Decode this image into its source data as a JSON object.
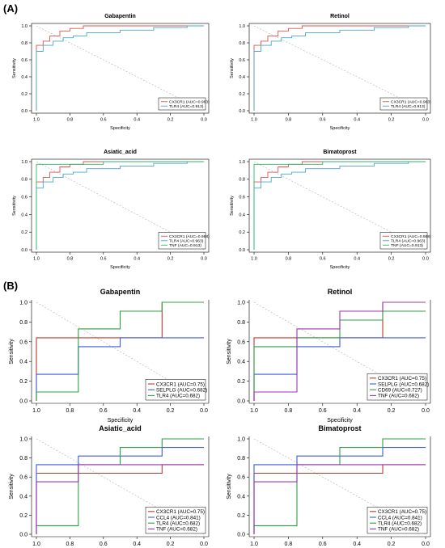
{
  "figure": {
    "panel_a_label": "(A)",
    "panel_b_label": "(B)"
  },
  "chart_data": [
    {
      "type": "line",
      "panel": "A",
      "title": "Gabapentin",
      "xlabel": "Specificity",
      "ylabel": "Sensitivity",
      "xlim": [
        1.0,
        0.0
      ],
      "ylim": [
        0.0,
        1.0
      ],
      "xticks": [
        "1.0",
        "0.8",
        "0.6",
        "0.4",
        "0.2",
        "0.0"
      ],
      "yticks": [
        "0.0",
        "0.2",
        "0.4",
        "0.6",
        "0.8",
        "1.0"
      ],
      "legend_position": "bottom-right",
      "series": [
        {
          "name": "CX3CR1 (AUC=0.963)",
          "color": "#d9534f",
          "x": [
            1.0,
            1.0,
            0.96,
            0.96,
            0.92,
            0.92,
            0.86,
            0.86,
            0.8,
            0.8,
            0.72,
            0.72,
            0.0
          ],
          "y": [
            0.0,
            0.77,
            0.77,
            0.82,
            0.82,
            0.88,
            0.88,
            0.94,
            0.94,
            0.97,
            0.97,
            1.0,
            1.0
          ]
        },
        {
          "name": "TLR4 (AUC=0.913)",
          "color": "#4aa6c9",
          "x": [
            1.0,
            1.0,
            0.96,
            0.96,
            0.9,
            0.9,
            0.84,
            0.84,
            0.78,
            0.78,
            0.7,
            0.7,
            0.5,
            0.5,
            0.3,
            0.3,
            0.1,
            0.1,
            0.0
          ],
          "y": [
            0.0,
            0.7,
            0.7,
            0.77,
            0.77,
            0.82,
            0.82,
            0.86,
            0.86,
            0.88,
            0.88,
            0.92,
            0.92,
            0.95,
            0.95,
            0.98,
            0.98,
            1.0,
            1.0
          ]
        }
      ]
    },
    {
      "type": "line",
      "panel": "A",
      "title": "Retinol",
      "xlabel": "Specificity",
      "ylabel": "Sensitivity",
      "xlim": [
        1.0,
        0.0
      ],
      "ylim": [
        0.0,
        1.0
      ],
      "xticks": [
        "1.0",
        "0.8",
        "0.6",
        "0.4",
        "0.2",
        "0.0"
      ],
      "yticks": [
        "0.0",
        "0.2",
        "0.4",
        "0.6",
        "0.8",
        "1.0"
      ],
      "legend_position": "bottom-right",
      "series": [
        {
          "name": "CX3CR1 (AUC=0.963)",
          "color": "#d9534f",
          "x": [
            1.0,
            1.0,
            0.96,
            0.96,
            0.92,
            0.92,
            0.86,
            0.86,
            0.8,
            0.8,
            0.72,
            0.72,
            0.0
          ],
          "y": [
            0.0,
            0.77,
            0.77,
            0.82,
            0.82,
            0.88,
            0.88,
            0.94,
            0.94,
            0.97,
            0.97,
            1.0,
            1.0
          ]
        },
        {
          "name": "TLR4 (AUC=0.913)",
          "color": "#4aa6c9",
          "x": [
            1.0,
            1.0,
            0.96,
            0.96,
            0.9,
            0.9,
            0.84,
            0.84,
            0.78,
            0.78,
            0.7,
            0.7,
            0.5,
            0.5,
            0.3,
            0.3,
            0.1,
            0.1,
            0.0
          ],
          "y": [
            0.0,
            0.7,
            0.7,
            0.77,
            0.77,
            0.82,
            0.82,
            0.86,
            0.86,
            0.88,
            0.88,
            0.92,
            0.92,
            0.95,
            0.95,
            0.98,
            0.98,
            1.0,
            1.0
          ]
        }
      ]
    },
    {
      "type": "line",
      "panel": "A",
      "title": "Asiatic_acid",
      "xlabel": "Specificity",
      "ylabel": "Sensitivity",
      "xlim": [
        1.0,
        0.0
      ],
      "ylim": [
        0.0,
        1.0
      ],
      "xticks": [
        "1.0",
        "0.8",
        "0.6",
        "0.4",
        "0.2",
        "0.0"
      ],
      "yticks": [
        "0.0",
        "0.2",
        "0.4",
        "0.6",
        "0.8",
        "1.0"
      ],
      "legend_position": "bottom-right",
      "series": [
        {
          "name": "CX3CR1 (AUC=0.988)",
          "color": "#d9534f",
          "x": [
            1.0,
            1.0,
            0.96,
            0.96,
            0.92,
            0.92,
            0.86,
            0.86,
            0.8,
            0.8,
            0.72,
            0.72,
            0.0
          ],
          "y": [
            0.0,
            0.77,
            0.77,
            0.82,
            0.82,
            0.88,
            0.88,
            0.94,
            0.94,
            0.97,
            0.97,
            1.0,
            1.0
          ]
        },
        {
          "name": "TLR4 (AUC=0.963)",
          "color": "#4aa6c9",
          "x": [
            1.0,
            1.0,
            0.96,
            0.96,
            0.9,
            0.9,
            0.84,
            0.84,
            0.78,
            0.78,
            0.7,
            0.7,
            0.5,
            0.5,
            0.3,
            0.3,
            0.1,
            0.1,
            0.0
          ],
          "y": [
            0.0,
            0.7,
            0.7,
            0.77,
            0.77,
            0.82,
            0.82,
            0.86,
            0.86,
            0.88,
            0.88,
            0.92,
            0.92,
            0.95,
            0.95,
            0.98,
            0.98,
            1.0,
            1.0
          ]
        },
        {
          "name": "TNF (AUC=0.913)",
          "color": "#2fb56a",
          "x": [
            1.0,
            1.0,
            0.6,
            0.6,
            0.0
          ],
          "y": [
            0.0,
            0.97,
            0.97,
            1.0,
            1.0
          ]
        }
      ]
    },
    {
      "type": "line",
      "panel": "A",
      "title": "Bimatoprost",
      "xlabel": "Specificity",
      "ylabel": "Sensitivity",
      "xlim": [
        1.0,
        0.0
      ],
      "ylim": [
        0.0,
        1.0
      ],
      "xticks": [
        "1.0",
        "0.8",
        "0.6",
        "0.4",
        "0.2",
        "0.0"
      ],
      "yticks": [
        "0.0",
        "0.2",
        "0.4",
        "0.6",
        "0.8",
        "1.0"
      ],
      "legend_position": "bottom-right",
      "series": [
        {
          "name": "CX3CR1 (AUC=0.988)",
          "color": "#d9534f",
          "x": [
            1.0,
            1.0,
            0.96,
            0.96,
            0.92,
            0.92,
            0.86,
            0.86,
            0.8,
            0.8,
            0.72,
            0.72,
            0.0
          ],
          "y": [
            0.0,
            0.77,
            0.77,
            0.82,
            0.82,
            0.88,
            0.88,
            0.94,
            0.94,
            0.97,
            0.97,
            1.0,
            1.0
          ]
        },
        {
          "name": "TLR4 (AUC=0.963)",
          "color": "#4aa6c9",
          "x": [
            1.0,
            1.0,
            0.96,
            0.96,
            0.9,
            0.9,
            0.84,
            0.84,
            0.78,
            0.78,
            0.7,
            0.7,
            0.5,
            0.5,
            0.3,
            0.3,
            0.1,
            0.1,
            0.0
          ],
          "y": [
            0.0,
            0.7,
            0.7,
            0.77,
            0.77,
            0.82,
            0.82,
            0.86,
            0.86,
            0.88,
            0.88,
            0.92,
            0.92,
            0.95,
            0.95,
            0.98,
            0.98,
            1.0,
            1.0
          ]
        },
        {
          "name": "TNF (AUC=0.913)",
          "color": "#2fb56a",
          "x": [
            1.0,
            1.0,
            0.6,
            0.6,
            0.0
          ],
          "y": [
            0.0,
            0.97,
            0.97,
            1.0,
            1.0
          ]
        }
      ]
    },
    {
      "type": "line",
      "panel": "B",
      "title": "Gabapentin",
      "xlabel": "Specificity",
      "ylabel": "Sensitivity",
      "xlim": [
        1.0,
        0.0
      ],
      "ylim": [
        0.0,
        1.0
      ],
      "xticks": [
        "1.0",
        "0.8",
        "0.6",
        "0.4",
        "0.2",
        "0.0"
      ],
      "yticks": [
        "0.0",
        "0.2",
        "0.4",
        "0.6",
        "0.8",
        "1.0"
      ],
      "legend_position": "bottom-right",
      "series": [
        {
          "name": "CX3CR1 (AUC=0.75)",
          "color": "#c0392b",
          "x": [
            1.0,
            1.0,
            0.25,
            0.25,
            0.0
          ],
          "y": [
            0.0,
            0.64,
            0.64,
            1.0,
            1.0
          ]
        },
        {
          "name": "SELPLG (AUC=0.682)",
          "color": "#3b5bdb",
          "x": [
            1.0,
            1.0,
            0.75,
            0.75,
            0.5,
            0.5,
            0.0
          ],
          "y": [
            0.0,
            0.27,
            0.27,
            0.55,
            0.55,
            0.64,
            0.64
          ]
        },
        {
          "name": "TLR4 (AUC=0.682)",
          "color": "#2f9e44",
          "x": [
            1.0,
            1.0,
            0.75,
            0.75,
            0.5,
            0.5,
            0.25,
            0.25,
            0.0
          ],
          "y": [
            0.0,
            0.09,
            0.09,
            0.73,
            0.73,
            0.91,
            0.91,
            1.0,
            1.0
          ]
        }
      ]
    },
    {
      "type": "line",
      "panel": "B",
      "title": "Retinol",
      "xlabel": "Specificity",
      "ylabel": "Sensitivity",
      "xlim": [
        1.0,
        0.0
      ],
      "ylim": [
        0.0,
        1.0
      ],
      "xticks": [
        "1.0",
        "0.8",
        "0.6",
        "0.4",
        "0.2",
        "0.0"
      ],
      "yticks": [
        "0.0",
        "0.2",
        "0.4",
        "0.6",
        "0.8",
        "1.0"
      ],
      "legend_position": "bottom-right",
      "series": [
        {
          "name": "CX3CR1 (AUC=0.75)",
          "color": "#c0392b",
          "x": [
            1.0,
            1.0,
            0.25,
            0.25,
            0.0
          ],
          "y": [
            0.0,
            0.64,
            0.64,
            1.0,
            1.0
          ]
        },
        {
          "name": "SELPLG (AUC=0.682)",
          "color": "#3b5bdb",
          "x": [
            1.0,
            1.0,
            0.75,
            0.75,
            0.5,
            0.5,
            0.0
          ],
          "y": [
            0.0,
            0.27,
            0.27,
            0.55,
            0.55,
            0.64,
            0.64
          ]
        },
        {
          "name": "CD69 (AUC=0.727)",
          "color": "#2f9e44",
          "x": [
            1.0,
            1.0,
            0.75,
            0.75,
            0.5,
            0.5,
            0.25,
            0.25,
            0.0
          ],
          "y": [
            0.0,
            0.55,
            0.55,
            0.64,
            0.64,
            0.82,
            0.82,
            0.91,
            0.91
          ]
        },
        {
          "name": "TNF (AUC=0.682)",
          "color": "#9c36b5",
          "x": [
            1.0,
            1.0,
            0.75,
            0.75,
            0.5,
            0.5,
            0.25,
            0.25,
            0.0
          ],
          "y": [
            0.0,
            0.09,
            0.09,
            0.73,
            0.73,
            0.91,
            0.91,
            1.0,
            1.0
          ]
        }
      ]
    },
    {
      "type": "line",
      "panel": "B",
      "title": "Asiatic_acid",
      "xlabel": "Specificity",
      "ylabel": "Sensitivity",
      "xlim": [
        1.0,
        0.0
      ],
      "ylim": [
        0.0,
        1.0
      ],
      "xticks": [
        "1.0",
        "0.8",
        "0.6",
        "0.4",
        "0.2",
        "0.0"
      ],
      "yticks": [
        "0.0",
        "0.2",
        "0.4",
        "0.6",
        "0.8",
        "1.0"
      ],
      "legend_position": "bottom-right",
      "series": [
        {
          "name": "CX3CR1 (AUC=0.75)",
          "color": "#c0392b",
          "x": [
            1.0,
            1.0,
            0.25,
            0.25,
            0.0
          ],
          "y": [
            0.0,
            0.64,
            0.64,
            0.73,
            0.73
          ]
        },
        {
          "name": "CCL4 (AUC=0.841)",
          "color": "#3b5bdb",
          "x": [
            1.0,
            1.0,
            0.75,
            0.75,
            0.25,
            0.25,
            0.0
          ],
          "y": [
            0.0,
            0.73,
            0.73,
            0.82,
            0.82,
            0.91,
            0.91
          ]
        },
        {
          "name": "TLR4 (AUC=0.682)",
          "color": "#2f9e44",
          "x": [
            1.0,
            1.0,
            0.75,
            0.75,
            0.5,
            0.5,
            0.25,
            0.25,
            0.0
          ],
          "y": [
            0.0,
            0.09,
            0.09,
            0.73,
            0.73,
            0.91,
            0.91,
            1.0,
            1.0
          ]
        },
        {
          "name": "TNF (AUC=0.682)",
          "color": "#9c36b5",
          "x": [
            1.0,
            1.0,
            0.75,
            0.75,
            0.0
          ],
          "y": [
            0.0,
            0.55,
            0.55,
            0.73,
            0.73
          ]
        }
      ]
    },
    {
      "type": "line",
      "panel": "B",
      "title": "Bimatoprost",
      "xlabel": "Specificity",
      "ylabel": "Sensitivity",
      "xlim": [
        1.0,
        0.0
      ],
      "ylim": [
        0.0,
        1.0
      ],
      "xticks": [
        "1.0",
        "0.8",
        "0.6",
        "0.4",
        "0.2",
        "0.0"
      ],
      "yticks": [
        "0.0",
        "0.2",
        "0.4",
        "0.6",
        "0.8",
        "1.0"
      ],
      "legend_position": "bottom-right",
      "series": [
        {
          "name": "CX3CR1 (AUC=0.75)",
          "color": "#c0392b",
          "x": [
            1.0,
            1.0,
            0.25,
            0.25,
            0.0
          ],
          "y": [
            0.0,
            0.64,
            0.64,
            0.73,
            0.73
          ]
        },
        {
          "name": "CCL4 (AUC=0.841)",
          "color": "#3b5bdb",
          "x": [
            1.0,
            1.0,
            0.75,
            0.75,
            0.25,
            0.25,
            0.0
          ],
          "y": [
            0.0,
            0.73,
            0.73,
            0.82,
            0.82,
            0.91,
            0.91
          ]
        },
        {
          "name": "TLR4 (AUC=0.682)",
          "color": "#2f9e44",
          "x": [
            1.0,
            1.0,
            0.75,
            0.75,
            0.5,
            0.5,
            0.25,
            0.25,
            0.0
          ],
          "y": [
            0.0,
            0.09,
            0.09,
            0.73,
            0.73,
            0.91,
            0.91,
            1.0,
            1.0
          ]
        },
        {
          "name": "TNF (AUC=0.682)",
          "color": "#9c36b5",
          "x": [
            1.0,
            1.0,
            0.75,
            0.75,
            0.0
          ],
          "y": [
            0.0,
            0.55,
            0.55,
            0.73,
            0.73
          ]
        }
      ]
    }
  ]
}
